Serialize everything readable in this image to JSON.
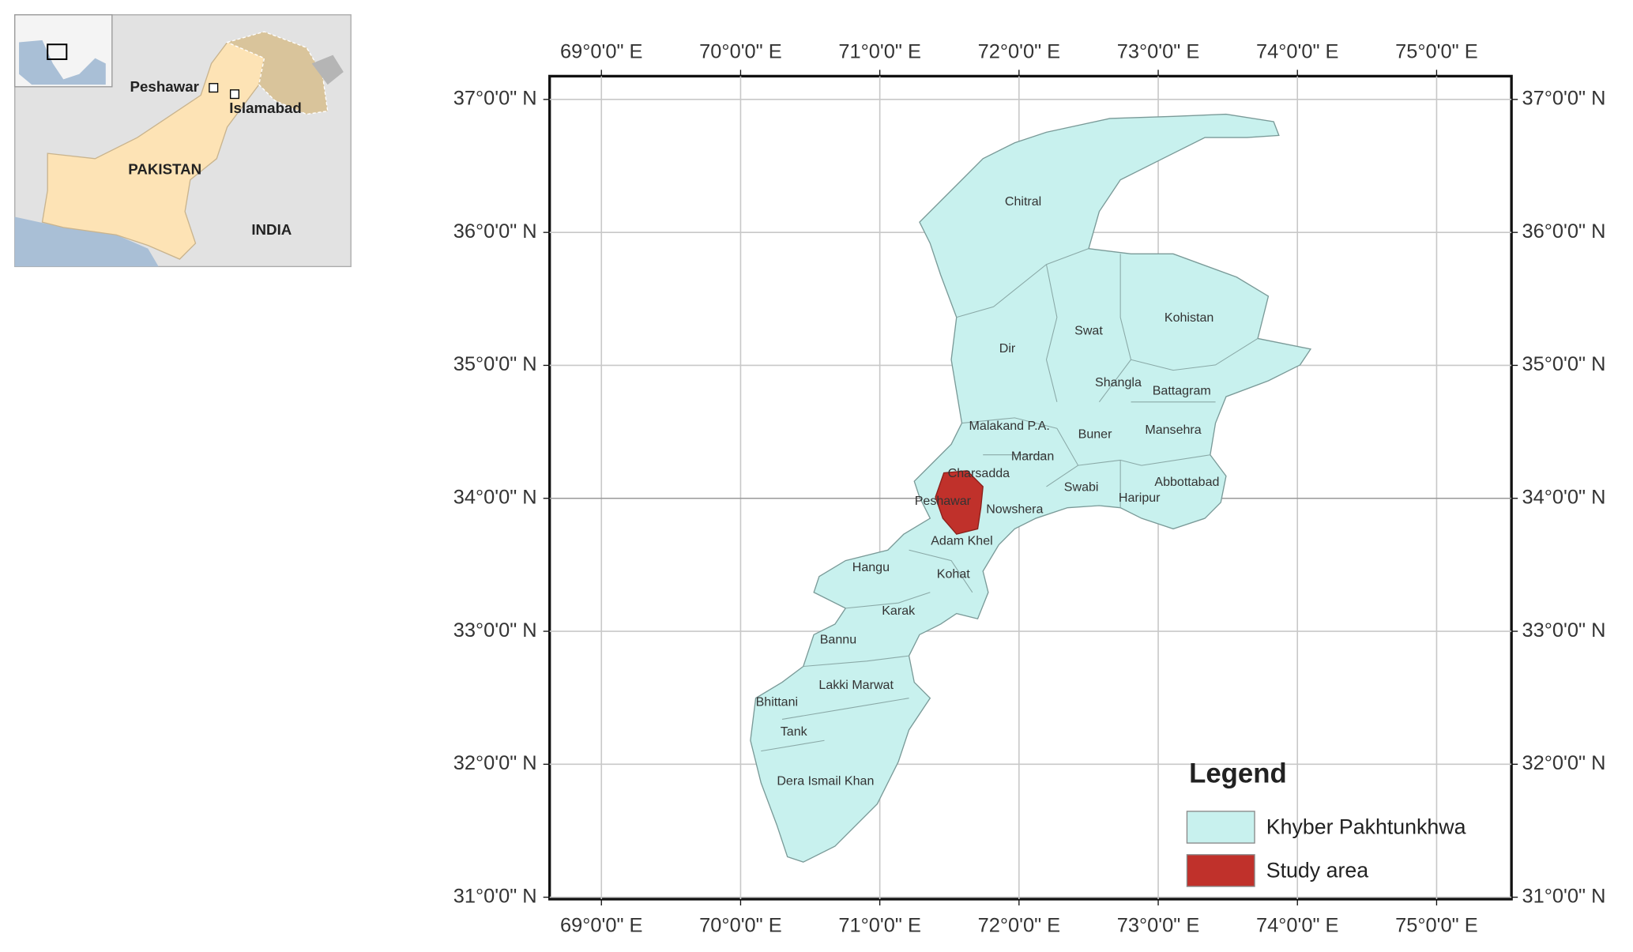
{
  "inset_map": {
    "labels": [
      "Peshawar",
      "Islamabad",
      "PAKISTAN",
      "INDIA"
    ]
  },
  "map": {
    "longitude_labels": [
      "69°0'0\" E",
      "70°0'0\" E",
      "71°0'0\" E",
      "72°0'0\" E",
      "73°0'0\" E",
      "74°0'0\" E",
      "75°0'0\" E"
    ],
    "latitude_labels": [
      "37°0'0\" N",
      "36°0'0\" N",
      "35°0'0\" N",
      "34°0'0\" N",
      "33°0'0\" N",
      "32°0'0\" N",
      "31°0'0\" N"
    ],
    "districts": [
      "Chitral",
      "Dir",
      "Swat",
      "Kohistan",
      "Shangla",
      "Battagram",
      "Malakand P.A.",
      "Buner",
      "Mansehra",
      "Mardan",
      "Charsadda",
      "Abbottabad",
      "Swabi",
      "Haripur",
      "Peshawar",
      "Nowshera",
      "Adam Khel",
      "Hangu",
      "Kohat",
      "Karak",
      "Bannu",
      "Lakki Marwat",
      "Bhittani",
      "Tank",
      "Dera Ismail Khan"
    ],
    "legend": {
      "title": "Legend",
      "items": [
        "Khyber Pakhtunkhwa",
        "Study area"
      ]
    }
  }
}
